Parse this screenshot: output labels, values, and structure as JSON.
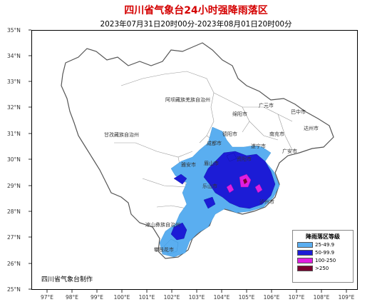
{
  "title": "四川省气象台24小时强降雨落区",
  "subtitle": "2023年07月31日20时00分-2023年08月01日20时00分",
  "credit": "四川省气象台制作",
  "y_ticks": [
    "35°N",
    "34°N",
    "33°N",
    "32°N",
    "31°N",
    "30°N",
    "29°N",
    "28°N",
    "27°N",
    "26°N",
    "25°N"
  ],
  "x_ticks": [
    "97°E",
    "98°E",
    "99°E",
    "100°E",
    "101°E",
    "102°E",
    "103°E",
    "104°E",
    "105°E",
    "106°E",
    "107°E",
    "108°E",
    "109°E"
  ],
  "cities": {
    "aba": "阿坝藏族羌族自治州",
    "guangyuan": "广元市",
    "mianyang": "绵阳市",
    "bazhong": "巴中市",
    "dazhou": "达州市",
    "nanchong": "南充市",
    "deyang": "德阳市",
    "suining": "遂宁市",
    "guangan": "广安市",
    "chengdu": "成都市",
    "ganzi": "甘孜藏族自治州",
    "meishan": "眉山市",
    "ziyang": "资阳市",
    "yaan": "雅安市",
    "leshan": "乐山市",
    "liangshan": "凉山彝族自治州",
    "panzhihua": "攀枝花市",
    "luzhou": "泸州市"
  },
  "legend": {
    "title": "降雨落区等级",
    "items": [
      {
        "label": "25-49.9",
        "color": "#5aaef0"
      },
      {
        "label": "50-99.9",
        "color": "#1c1cd6"
      },
      {
        "label": "100-250",
        "color": "#e01ee0"
      },
      {
        "label": ">250",
        "color": "#7a0030"
      }
    ]
  },
  "colors": {
    "title": "#d40000",
    "boundary": "#888888",
    "province_outline": "#555555"
  }
}
